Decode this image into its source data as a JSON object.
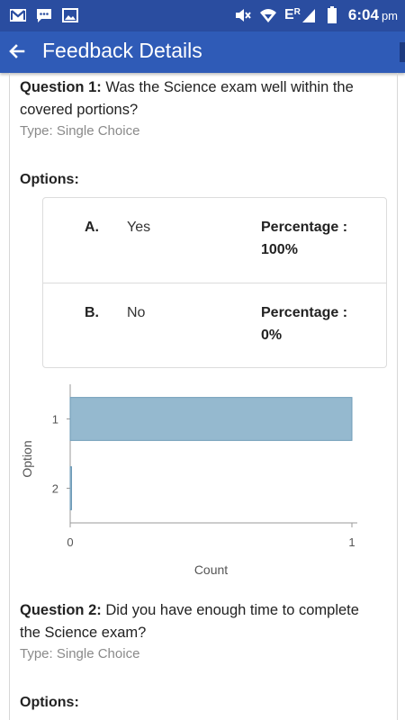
{
  "status_bar": {
    "left_icons": [
      "gmail-icon",
      "message-icon",
      "image-icon"
    ],
    "right_icons": [
      "mute-icon",
      "wifi-icon",
      "signal-er-icon",
      "battery-icon"
    ],
    "network_label": "E",
    "network_sup": "R",
    "time": "6:04",
    "ampm": "pm"
  },
  "app_bar": {
    "title": "Feedback Details",
    "back_icon": "arrow-back-icon"
  },
  "questions": [
    {
      "prefix": "Question 1:",
      "text": "Was the Science exam well within the covered portions?",
      "type": "Type: Single Choice",
      "options_label": "Options:",
      "options": [
        {
          "letter": "A.",
          "text": "Yes",
          "percentage": "Percentage : 100%"
        },
        {
          "letter": "B.",
          "text": "No",
          "percentage": "Percentage : 0%"
        }
      ]
    },
    {
      "prefix": "Question 2:",
      "text": "Did you have enough time to complete the Science exam?",
      "type": "Type: Single Choice",
      "options_label": "Options:"
    }
  ],
  "chart_data": {
    "type": "bar",
    "orientation": "horizontal",
    "categories": [
      "1",
      "2"
    ],
    "values": [
      1,
      0
    ],
    "xlabel": "Count",
    "ylabel": "Option",
    "xlim": [
      0,
      1
    ],
    "xticks": [
      "0",
      "1"
    ],
    "grid": false,
    "colors": {
      "bar": "#95b9cf",
      "bar_border": "#6e9bb7",
      "axis": "#9a9a9a"
    }
  }
}
